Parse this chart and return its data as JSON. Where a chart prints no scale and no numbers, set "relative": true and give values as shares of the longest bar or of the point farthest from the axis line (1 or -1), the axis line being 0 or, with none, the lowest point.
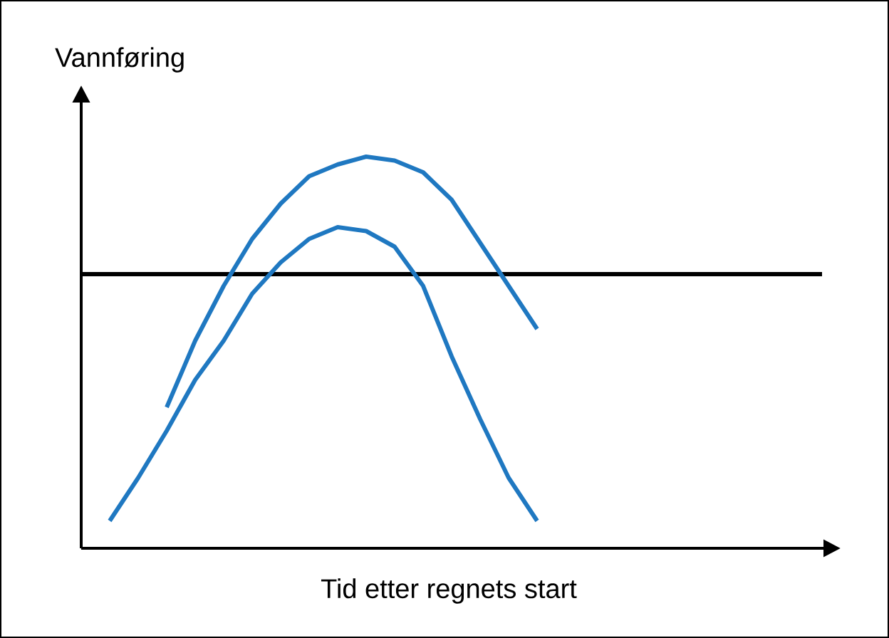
{
  "chart_data": {
    "type": "line",
    "relative": true,
    "xlabel": "Tid etter regnets start",
    "ylabel": "Vannføring",
    "categories": [
      null,
      null,
      null,
      null,
      null,
      null,
      null,
      null,
      null,
      null,
      null,
      null,
      null,
      null,
      null,
      null,
      null,
      null,
      null,
      null,
      null,
      null,
      null,
      null,
      null,
      null,
      null
    ],
    "series": [
      {
        "color": "#000000",
        "values": [
          0.7,
          0.7,
          0.7,
          0.7,
          0.7,
          0.7,
          0.7,
          0.7,
          0.7,
          0.7,
          0.7,
          0.7,
          0.7,
          0.7,
          0.7,
          0.7,
          0.7,
          0.7,
          0.7,
          0.7,
          0.7,
          0.7,
          0.7,
          0.7,
          0.7,
          0.7,
          0.7
        ]
      },
      {
        "color": "#1f78c1",
        "values": [
          null,
          null,
          null,
          0.36,
          0.53,
          0.67,
          0.79,
          0.88,
          0.95,
          0.98,
          1.0,
          0.99,
          0.96,
          0.89,
          0.78,
          0.67,
          0.56,
          null,
          null,
          null,
          null,
          null,
          null,
          null,
          null,
          null,
          null
        ]
      },
      {
        "color": "#1f78c1",
        "values": [
          null,
          0.07,
          0.18,
          0.3,
          0.43,
          0.53,
          0.65,
          0.73,
          0.79,
          0.82,
          0.81,
          0.77,
          0.67,
          0.49,
          0.33,
          0.18,
          0.07,
          null,
          null,
          null,
          null,
          null,
          null,
          null,
          null,
          null,
          null
        ]
      }
    ]
  }
}
